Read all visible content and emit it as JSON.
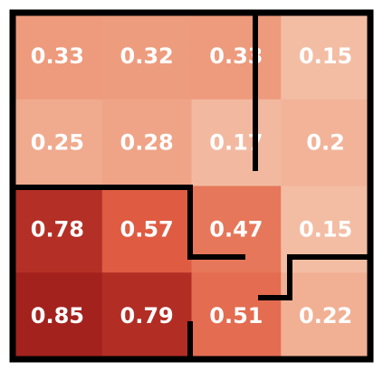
{
  "chart_data": {
    "type": "heatmap",
    "values": [
      [
        0.33,
        0.32,
        0.33,
        0.15
      ],
      [
        0.25,
        0.28,
        0.17,
        0.2
      ],
      [
        0.78,
        0.57,
        0.47,
        0.15
      ],
      [
        0.85,
        0.79,
        0.51,
        0.22
      ]
    ],
    "colormap": [
      "#f3bda4",
      "#ec9070",
      "#dc4e36",
      "#a3221e"
    ]
  }
}
